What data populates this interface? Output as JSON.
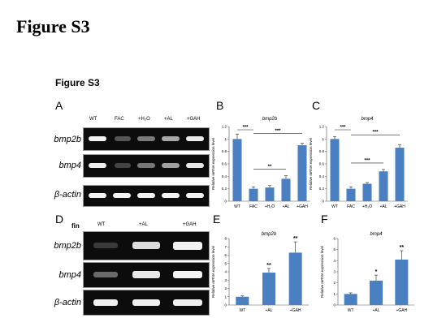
{
  "figure_title": "Figure S3",
  "figure_subtitle": "Figure S3",
  "panels": {
    "A": {
      "label": "A",
      "lanes": [
        "WT",
        "FAC",
        "+H₂O",
        "+AL",
        "+GAH"
      ],
      "rows": [
        "bmp2b",
        "bmp4",
        "β-actin"
      ]
    },
    "D": {
      "label": "D",
      "tissue": "fin",
      "lanes": [
        "WT",
        "+AL",
        "+GAH"
      ],
      "rows": [
        "bmp2b",
        "bmp4",
        "β-actin"
      ]
    }
  },
  "chart_data": [
    {
      "panel": "B",
      "type": "bar",
      "title": "bmp2b",
      "ylabel": "Relative mRNA expression level",
      "categories": [
        "WT",
        "FAC",
        "+H₂O",
        "+AL",
        "+GAH"
      ],
      "values": [
        1.0,
        0.2,
        0.22,
        0.36,
        0.9
      ],
      "errors": [
        0.08,
        0.03,
        0.03,
        0.05,
        0.03
      ],
      "ylim": [
        0,
        1.2
      ],
      "yticks": [
        "0",
        "0.2",
        "0.4",
        "0.6",
        "0.8",
        "1",
        "1.2"
      ],
      "comparisons": [
        {
          "from": "WT",
          "to": "FAC",
          "label": "***"
        },
        {
          "from": "FAC",
          "to": "+GAH",
          "label": "***"
        },
        {
          "from": "FAC",
          "to": "+AL",
          "label": "**"
        }
      ]
    },
    {
      "panel": "C",
      "type": "bar",
      "title": "bmp4",
      "ylabel": "Relative mRNA expression level",
      "categories": [
        "WT",
        "FAC",
        "+H₂O",
        "+AL",
        "+GAH"
      ],
      "values": [
        1.0,
        0.2,
        0.28,
        0.48,
        0.86
      ],
      "errors": [
        0.04,
        0.03,
        0.02,
        0.03,
        0.05
      ],
      "ylim": [
        0,
        1.2
      ],
      "yticks": [
        "0",
        "0.2",
        "0.4",
        "0.6",
        "0.8",
        "1",
        "1.2"
      ],
      "comparisons": [
        {
          "from": "WT",
          "to": "FAC",
          "label": "***"
        },
        {
          "from": "FAC",
          "to": "+GAH",
          "label": "***"
        },
        {
          "from": "FAC",
          "to": "+AL",
          "label": "***"
        }
      ]
    },
    {
      "panel": "E",
      "type": "bar",
      "title": "bmp2b",
      "ylabel": "Relative mRNA expression level",
      "categories": [
        "WT",
        "+AL",
        "+GAH"
      ],
      "values": [
        1.0,
        3.9,
        6.3
      ],
      "errors": [
        0.1,
        0.5,
        1.3
      ],
      "ylim": [
        0,
        8
      ],
      "yticks": [
        "0",
        "1",
        "2",
        "3",
        "4",
        "5",
        "6",
        "7",
        "8"
      ],
      "significance": [
        "",
        "**",
        "**"
      ]
    },
    {
      "panel": "F",
      "type": "bar",
      "title": "bmp4",
      "ylabel": "Relative mRNA expression level",
      "categories": [
        "WT",
        "+AL",
        "+GAH"
      ],
      "values": [
        1.0,
        2.2,
        4.1
      ],
      "errors": [
        0.1,
        0.5,
        0.8
      ],
      "ylim": [
        0,
        6
      ],
      "yticks": [
        "0",
        "1",
        "2",
        "3",
        "4",
        "5",
        "6"
      ],
      "significance": [
        "",
        "*",
        "**"
      ]
    }
  ],
  "colors": {
    "bar": "#4a7fc1",
    "gel": "#0c0c0c",
    "band": "#f2f2f2"
  }
}
